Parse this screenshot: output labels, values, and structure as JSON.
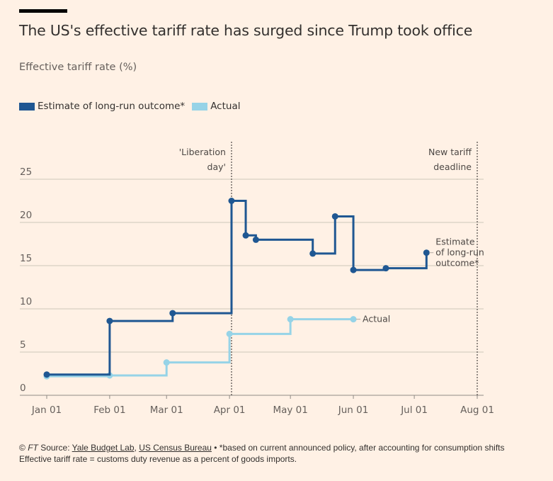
{
  "header": {
    "title": "The US's effective tariff rate has surged since Trump took office",
    "subtitle": "Effective tariff rate (%)"
  },
  "legend": [
    {
      "label": "Estimate of long-run outcome*",
      "color": "#1f5792"
    },
    {
      "label": "Actual",
      "color": "#96d3e7"
    }
  ],
  "chart_data": {
    "type": "line",
    "step": "after",
    "title": "The US's effective tariff rate has surged since Trump took office",
    "ylabel": "Effective tariff rate (%)",
    "ylim": [
      0,
      25
    ],
    "yticks": [
      0,
      5,
      10,
      15,
      20,
      25
    ],
    "xlim": [
      "Jan 01",
      "Aug 01"
    ],
    "xticks": [
      "Jan 01",
      "Feb 01",
      "Mar 01",
      "Apr 01",
      "May 01",
      "Jun 01",
      "Jul 01",
      "Aug 01"
    ],
    "grid": true,
    "legend_position": "top-left",
    "series": [
      {
        "name": "Estimate of long-run outcome*",
        "end_label": [
          "Estimate",
          "of long-run",
          "outcome*"
        ],
        "color": "#1f5792",
        "x": [
          "Jan 01",
          "Feb 01",
          "Mar 04",
          "Apr 02",
          "Apr 09",
          "Apr 14",
          "May 12",
          "May 23",
          "Jun 01",
          "Jun 17",
          "Jul 07"
        ],
        "y": [
          2.4,
          8.6,
          9.5,
          22.5,
          18.5,
          18.0,
          16.4,
          20.7,
          14.5,
          14.7,
          16.5
        ]
      },
      {
        "name": "Actual",
        "end_label": [
          "Actual"
        ],
        "color": "#96d3e7",
        "x": [
          "Jan 01",
          "Feb 01",
          "Mar 01",
          "Apr 01",
          "May 01",
          "Jun 01"
        ],
        "y": [
          2.2,
          2.3,
          3.8,
          7.1,
          8.8,
          8.8
        ]
      }
    ],
    "annotations": [
      {
        "x": "Apr 02",
        "label": [
          "'Liberation",
          "day'"
        ]
      },
      {
        "x": "Aug 01",
        "label": [
          "New tariff",
          "deadline"
        ]
      }
    ]
  },
  "footer": {
    "copyright": "© ",
    "ft": "FT",
    "source_prefix": " Source: ",
    "source1": "Yale Budget Lab",
    "sep": ", ",
    "source2": "US Census Bureau",
    "note": " • *based on current announced policy, after accounting for consumption shifts",
    "definition": "Effective tariff rate = customs duty revenue as a percent of goods imports."
  }
}
